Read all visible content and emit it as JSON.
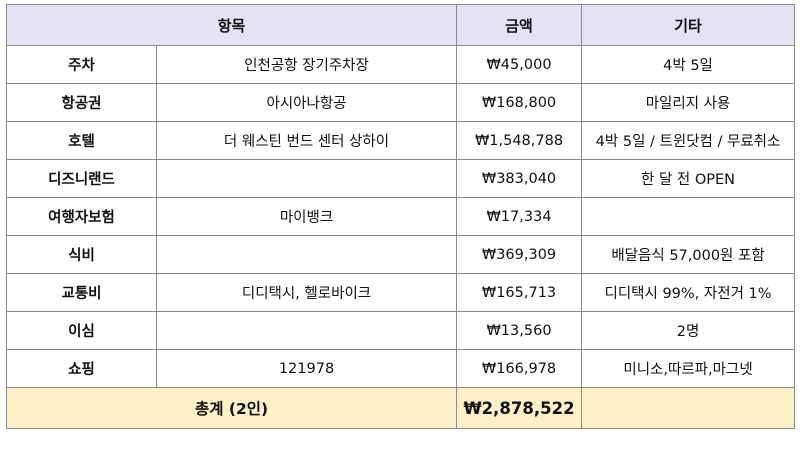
{
  "header": {
    "item": "항목",
    "amount": "금액",
    "note": "기타"
  },
  "rows": [
    {
      "item": "주차",
      "detail": "인천공항 장기주차장",
      "amount": "₩45,000",
      "note": "4박 5일"
    },
    {
      "item": "항공권",
      "detail": "아시아나항공",
      "amount": "₩168,800",
      "note": "마일리지 사용"
    },
    {
      "item": "호텔",
      "detail": "더 웨스틴 번드 센터 상하이",
      "amount": "₩1,548,788",
      "note": "4박 5일 / 트윈닷컴 / 무료취소"
    },
    {
      "item": "디즈니랜드",
      "detail": "",
      "amount": "₩383,040",
      "note": "한 달 전 OPEN"
    },
    {
      "item": "여행자보험",
      "detail": "마이뱅크",
      "amount": "₩17,334",
      "note": ""
    },
    {
      "item": "식비",
      "detail": "",
      "amount": "₩369,309",
      "note": "배달음식 57,000원 포함"
    },
    {
      "item": "교통비",
      "detail": "디디택시, 헬로바이크",
      "amount": "₩165,713",
      "note": "디디택시 99%, 자전거 1%"
    },
    {
      "item": "이심",
      "detail": "",
      "amount": "₩13,560",
      "note": "2명"
    },
    {
      "item": "쇼핑",
      "detail": "121978",
      "amount": "₩166,978",
      "note": "미니소,따르파,마그넷"
    }
  ],
  "total": {
    "label": "총계 (2인)",
    "amount": "₩2,878,522",
    "note": ""
  }
}
